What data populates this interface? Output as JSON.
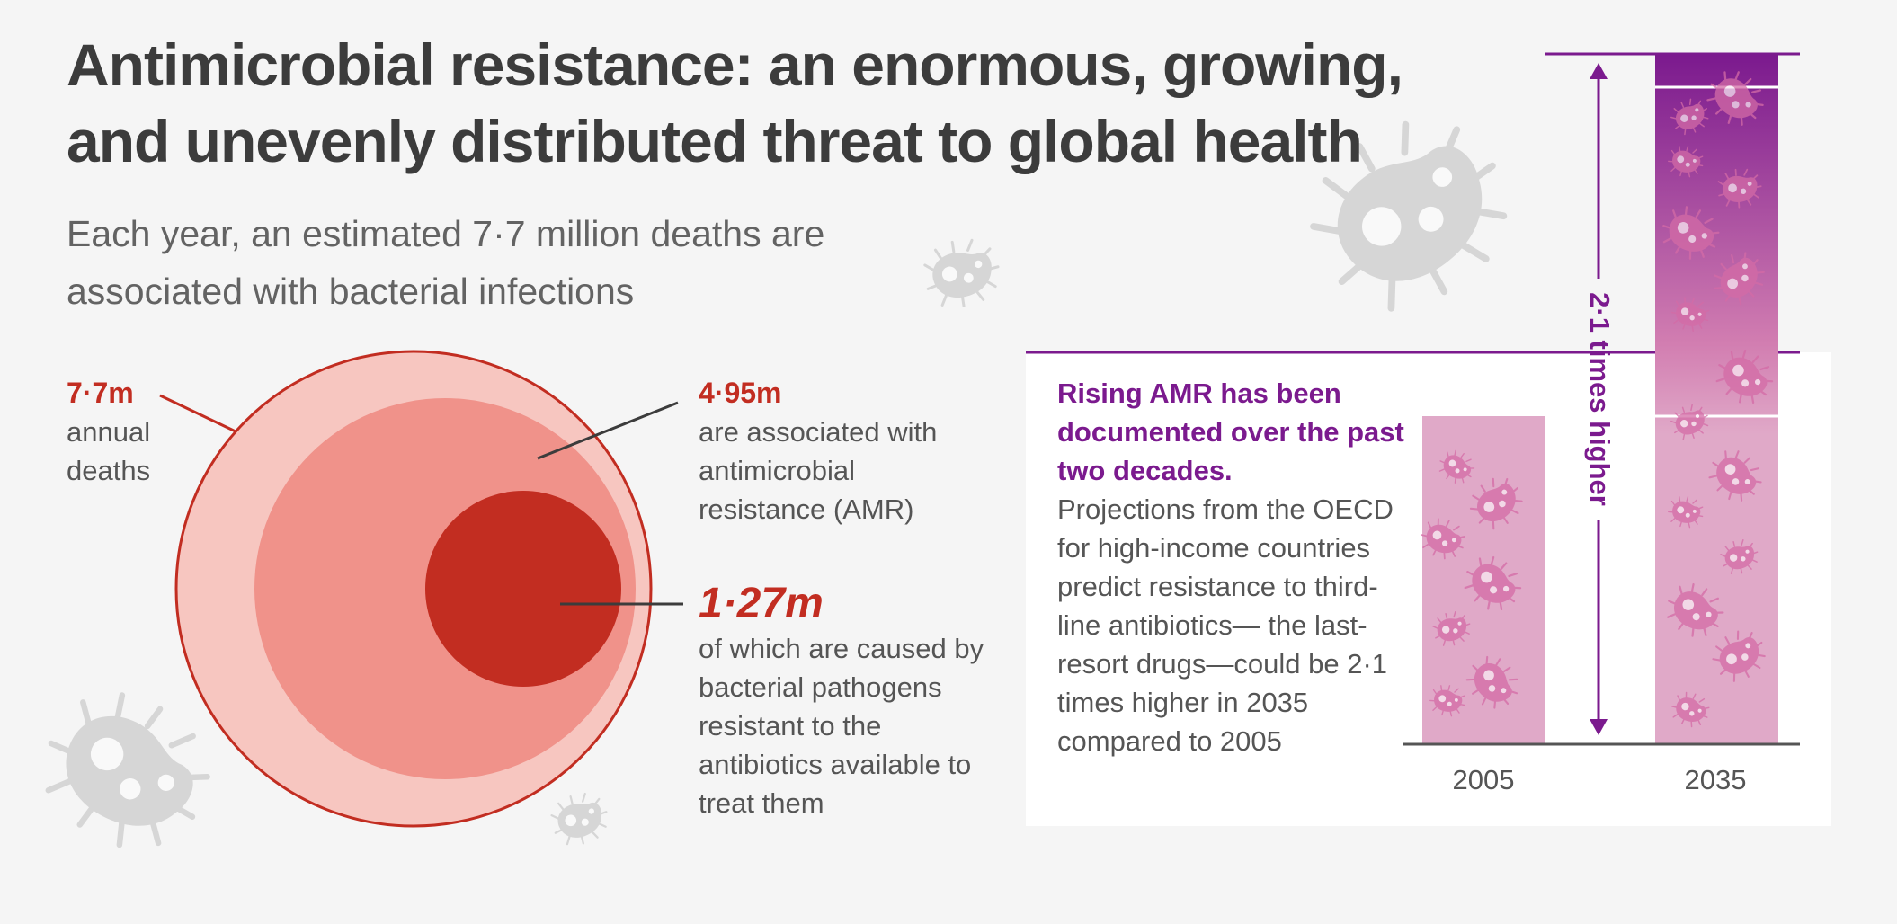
{
  "title": "Antimicrobial resistance: an enormous, growing, and unevenly distributed threat to global health",
  "subtitle": "Each year, an estimated 7·7 million deaths are associated with bacterial infections",
  "circles": {
    "outer": {
      "value": "7·7m",
      "desc": "annual deaths"
    },
    "middle": {
      "value": "4·95m",
      "desc": "are associated with antimicrobial resistance (AMR)"
    },
    "inner": {
      "value": "1·27m",
      "desc": "of which are caused by bacterial pathogens resistant to the antibiotics available to treat them"
    }
  },
  "panel": {
    "heading": "Rising AMR has been documented over the past two decades.",
    "body": "Projections from the OECD for high-income countries predict resistance to third-line antibiotics— the last-resort drugs—could be 2·1 times higher in 2035 compared to 2005"
  },
  "bars": {
    "multiplier_label": "2·1 times higher",
    "multiplier": 2.1,
    "years": [
      "2005",
      "2035"
    ]
  },
  "colors": {
    "red": "#c22d21",
    "purple": "#7b1a8e",
    "pink": "#e0a9c8",
    "circle_light": "#f7c6c0",
    "circle_mid": "#f0928a"
  },
  "icons": [
    "bacterium-icon"
  ]
}
